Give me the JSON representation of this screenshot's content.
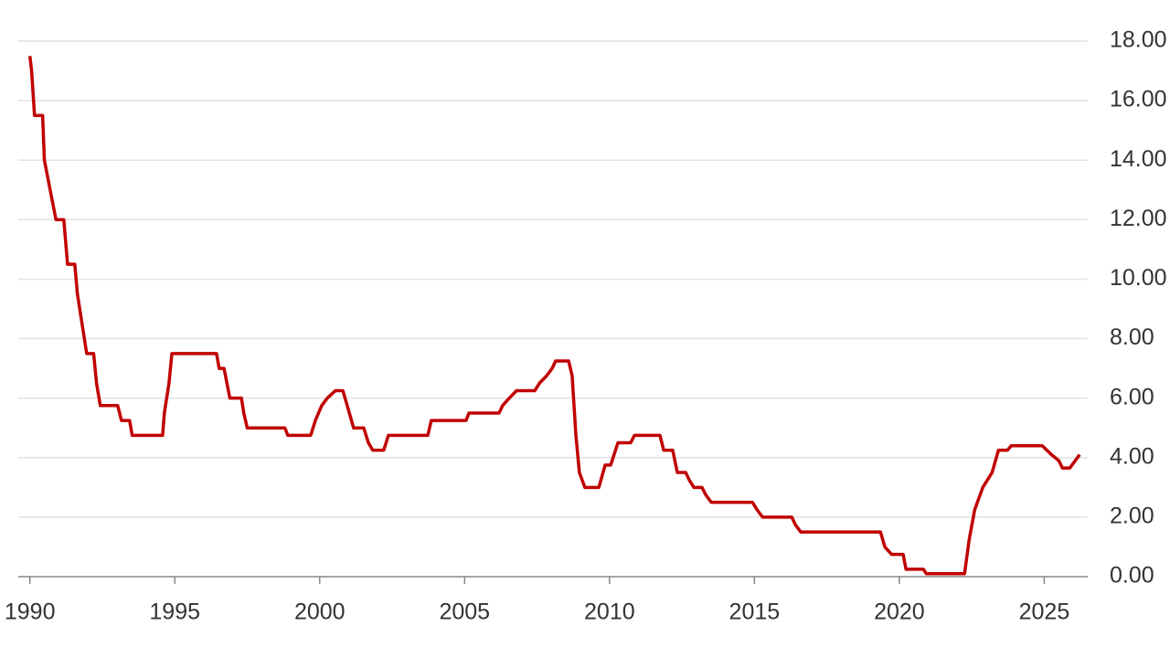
{
  "chart_data": {
    "type": "line",
    "x": [
      1990.0,
      1990.06,
      1990.16,
      1990.44,
      1990.5,
      1990.7,
      1990.9,
      1991.17,
      1991.3,
      1991.55,
      1991.64,
      1991.8,
      1991.96,
      1992.2,
      1992.3,
      1992.43,
      1993.03,
      1993.16,
      1993.44,
      1993.53,
      1994.58,
      1994.64,
      1994.8,
      1994.9,
      1996.44,
      1996.53,
      1996.7,
      1996.9,
      1997.3,
      1997.38,
      1997.5,
      1998.8,
      1998.9,
      1999.69,
      1999.85,
      2000.07,
      2000.26,
      2000.54,
      2000.8,
      2000.95,
      2001.17,
      2001.52,
      2001.68,
      2001.83,
      2002.21,
      2002.37,
      2003.73,
      2003.85,
      2005.05,
      2005.15,
      2006.19,
      2006.31,
      2006.54,
      2006.79,
      2007.42,
      2007.58,
      2007.83,
      2008.02,
      2008.14,
      2008.59,
      2008.71,
      2008.84,
      2008.96,
      2009.15,
      2009.63,
      2009.85,
      2010.04,
      2010.29,
      2010.73,
      2010.86,
      2011.74,
      2011.87,
      2012.18,
      2012.34,
      2012.63,
      2012.75,
      2012.91,
      2013.19,
      2013.32,
      2013.51,
      2014.93,
      2015.09,
      2015.28,
      2016.29,
      2016.41,
      2016.6,
      2019.35,
      2019.5,
      2019.73,
      2020.13,
      2020.23,
      2020.83,
      2020.93,
      2022.25,
      2022.41,
      2022.6,
      2022.88,
      2023.2,
      2023.42,
      2023.73,
      2023.86,
      2024.93,
      2025.25,
      2025.5,
      2025.63,
      2025.88,
      2026.07,
      2026.22
    ],
    "series": [
      {
        "color": "#c00000",
        "values": [
          17.5,
          17.0,
          15.5,
          15.5,
          14.0,
          13.0,
          12.0,
          12.0,
          10.5,
          10.5,
          9.5,
          8.5,
          7.5,
          7.5,
          6.5,
          5.75,
          5.75,
          5.25,
          5.25,
          4.75,
          4.75,
          5.5,
          6.5,
          7.5,
          7.5,
          7.0,
          7.0,
          6.0,
          6.0,
          5.5,
          5.0,
          5.0,
          4.75,
          4.75,
          5.25,
          5.75,
          6.0,
          6.25,
          6.25,
          5.75,
          5.0,
          5.0,
          4.5,
          4.25,
          4.25,
          4.75,
          4.75,
          5.25,
          5.25,
          5.5,
          5.5,
          5.75,
          6.0,
          6.25,
          6.25,
          6.5,
          6.75,
          7.0,
          7.25,
          7.25,
          6.75,
          4.75,
          3.5,
          3.0,
          3.0,
          3.75,
          3.75,
          4.5,
          4.5,
          4.75,
          4.75,
          4.25,
          4.25,
          3.5,
          3.5,
          3.25,
          3.0,
          3.0,
          2.75,
          2.5,
          2.5,
          2.25,
          2.0,
          2.0,
          1.75,
          1.5,
          1.5,
          1.0,
          0.75,
          0.75,
          0.25,
          0.25,
          0.1,
          0.1,
          1.25,
          2.25,
          3.0,
          3.5,
          4.25,
          4.25,
          4.4,
          4.4,
          4.1,
          3.9,
          3.65,
          3.65,
          3.9,
          4.1
        ]
      }
    ],
    "xlim": [
      1989.6,
      2026.5
    ],
    "xticks": [
      1990,
      1995,
      2000,
      2005,
      2010,
      2015,
      2020,
      2025
    ],
    "ylim": [
      0,
      18
    ],
    "yticks": [
      {
        "value": 0,
        "label": "0.00"
      },
      {
        "value": 2,
        "label": "2.00"
      },
      {
        "value": 4,
        "label": "4.00"
      },
      {
        "value": 6,
        "label": "6.00"
      },
      {
        "value": 8,
        "label": "8.00"
      },
      {
        "value": 10,
        "label": "10.00"
      },
      {
        "value": 12,
        "label": "12.00"
      },
      {
        "value": 14,
        "label": "14.00"
      },
      {
        "value": 16,
        "label": "16.00"
      },
      {
        "value": 18,
        "label": "18.00"
      }
    ],
    "grid": true
  }
}
